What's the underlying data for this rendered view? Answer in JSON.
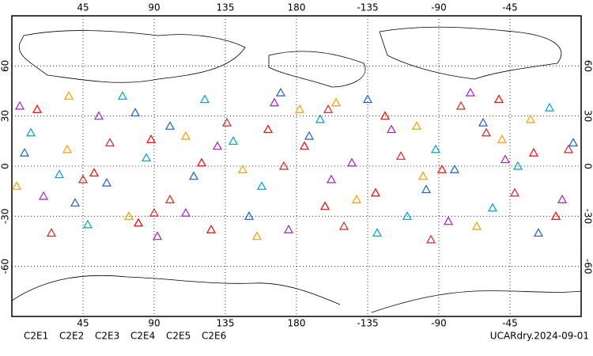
{
  "chart_data": {
    "type": "scatter",
    "xlim": [
      0,
      360
    ],
    "ylim": [
      -90,
      90
    ],
    "xticks": [
      45,
      90,
      135,
      180,
      {
        "value": 225,
        "label": "-135"
      },
      {
        "value": 270,
        "label": "-90"
      },
      {
        "value": 315,
        "label": "-45"
      }
    ],
    "yticks": [
      -60,
      -30,
      0,
      30,
      60
    ],
    "grid": true,
    "annotation": "UCARdry.2024-09-01",
    "series": [
      {
        "name": "C2E1",
        "color": "#00a0c8",
        "x": [
          12,
          48,
          85,
          122,
          158,
          195,
          231,
          268,
          304,
          340,
          30,
          140,
          250,
          320,
          70
        ],
        "values": [
          20,
          -35,
          5,
          40,
          -12,
          28,
          -40,
          10,
          -25,
          35,
          -5,
          15,
          -30,
          0,
          42
        ]
      },
      {
        "name": "C2E2",
        "color": "#a020c0",
        "x": [
          20,
          55,
          92,
          130,
          166,
          202,
          240,
          276,
          312,
          348,
          5,
          110,
          215,
          290,
          175
        ],
        "values": [
          -18,
          30,
          -42,
          12,
          38,
          -8,
          22,
          -33,
          4,
          -20,
          36,
          -28,
          2,
          44,
          -38
        ]
      },
      {
        "name": "C2E3",
        "color": "#1a5fd0",
        "x": [
          8,
          40,
          78,
          115,
          150,
          188,
          225,
          262,
          298,
          333,
          60,
          170,
          280,
          355,
          100
        ],
        "values": [
          8,
          -22,
          32,
          -6,
          -30,
          18,
          40,
          -14,
          26,
          -40,
          -10,
          44,
          -2,
          14,
          24
        ]
      },
      {
        "name": "C2E4",
        "color": "#d02828",
        "x": [
          25,
          62,
          100,
          136,
          172,
          210,
          246,
          284,
          318,
          352,
          90,
          200,
          300,
          45,
          265
        ],
        "values": [
          -40,
          14,
          -20,
          26,
          0,
          -36,
          6,
          36,
          -16,
          10,
          -28,
          34,
          20,
          -8,
          -44
        ]
      },
      {
        "name": "C2E5",
        "color": "#ff0000",
        "x": [
          16,
          52,
          88,
          126,
          162,
          198,
          236,
          272,
          308,
          344,
          120,
          230,
          330,
          80,
          185
        ],
        "values": [
          34,
          -4,
          16,
          -38,
          22,
          -24,
          30,
          -2,
          40,
          -30,
          2,
          -16,
          8,
          -34,
          12
        ]
      },
      {
        "name": "C2E6",
        "color": "#f0a000",
        "x": [
          3,
          36,
          74,
          110,
          146,
          182,
          218,
          256,
          294,
          328,
          155,
          260,
          35,
          310,
          205
        ],
        "values": [
          -12,
          42,
          -30,
          18,
          -2,
          34,
          -20,
          24,
          -36,
          28,
          -42,
          -6,
          10,
          16,
          38
        ]
      }
    ]
  }
}
